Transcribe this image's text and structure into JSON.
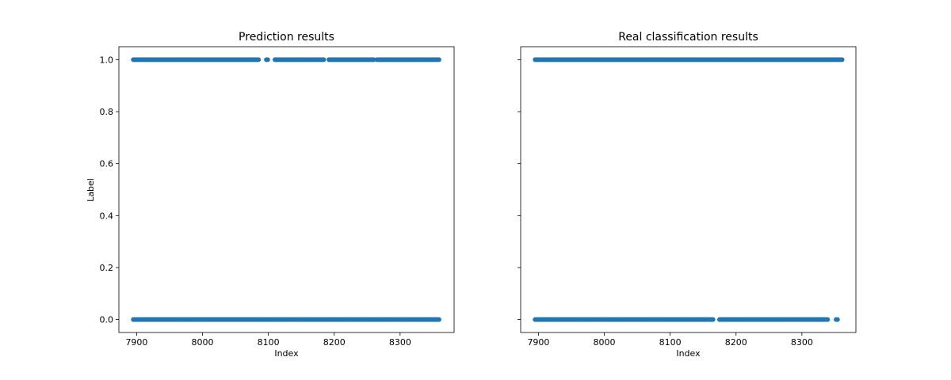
{
  "chart_data": [
    {
      "type": "scatter",
      "title": "Prediction results",
      "xlabel": "Index",
      "ylabel": "Label",
      "xlim": [
        7873,
        8382
      ],
      "ylim": [
        -0.05,
        1.05
      ],
      "x_ticks": [
        {
          "value": 7900,
          "label": "7900"
        },
        {
          "value": 8000,
          "label": "8000"
        },
        {
          "value": 8100,
          "label": "8100"
        },
        {
          "value": 8200,
          "label": "8200"
        },
        {
          "value": 8300,
          "label": "8300"
        }
      ],
      "y_ticks": [
        {
          "value": 0.0,
          "label": "0.0"
        },
        {
          "value": 0.2,
          "label": "0.2"
        },
        {
          "value": 0.4,
          "label": "0.4"
        },
        {
          "value": 0.6,
          "label": "0.6"
        },
        {
          "value": 0.8,
          "label": "0.8"
        },
        {
          "value": 1.0,
          "label": "1.0"
        }
      ],
      "color": "#1f77b4",
      "grid": false,
      "series": [
        {
          "y": 1.0,
          "segments": [
            [
              7895,
              8085
            ],
            [
              8097,
              8100
            ],
            [
              8110,
              8185
            ],
            [
              8192,
              8260
            ],
            [
              8265,
              8360
            ]
          ]
        },
        {
          "y": 0.0,
          "segments": [
            [
              7895,
              8360
            ]
          ]
        }
      ]
    },
    {
      "type": "scatter",
      "title": "Real classification results",
      "xlabel": "Index",
      "ylabel": "",
      "xlim": [
        7873,
        8382
      ],
      "ylim": [
        -0.05,
        1.05
      ],
      "x_ticks": [
        {
          "value": 7900,
          "label": "7900"
        },
        {
          "value": 8000,
          "label": "8000"
        },
        {
          "value": 8100,
          "label": "8100"
        },
        {
          "value": 8200,
          "label": "8200"
        },
        {
          "value": 8300,
          "label": "8300"
        }
      ],
      "y_ticks": [
        {
          "value": 0.0,
          "label": ""
        },
        {
          "value": 0.2,
          "label": ""
        },
        {
          "value": 0.4,
          "label": ""
        },
        {
          "value": 0.6,
          "label": ""
        },
        {
          "value": 0.8,
          "label": ""
        },
        {
          "value": 1.0,
          "label": ""
        }
      ],
      "color": "#1f77b4",
      "grid": false,
      "series": [
        {
          "y": 1.0,
          "segments": [
            [
              7895,
              8362
            ]
          ]
        },
        {
          "y": 0.0,
          "segments": [
            [
              7895,
              8165
            ],
            [
              8175,
              8340
            ],
            [
              8352,
              8355
            ]
          ]
        }
      ]
    }
  ]
}
